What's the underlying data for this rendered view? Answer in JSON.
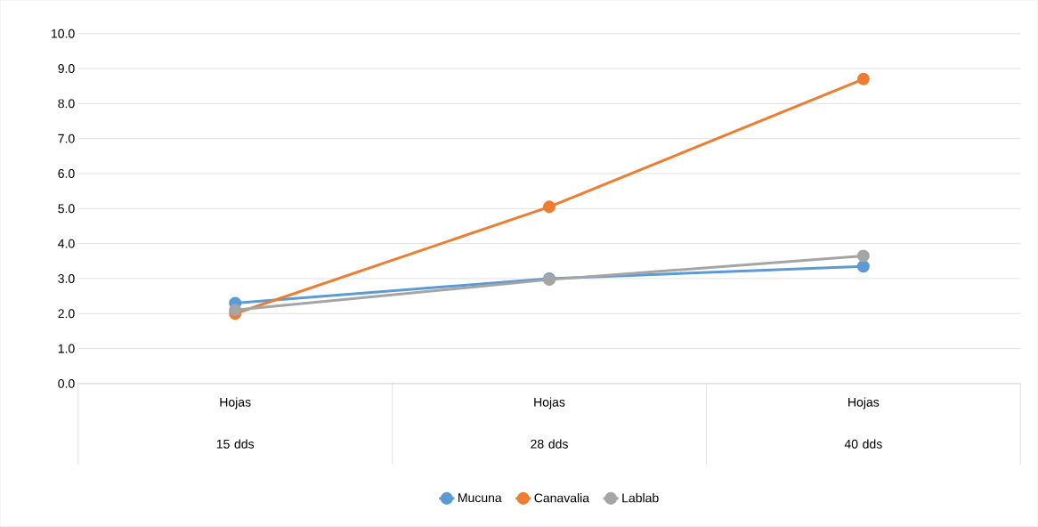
{
  "chart_data": {
    "type": "line",
    "categories": [
      "Hojas 15 dds",
      "Hojas 28 dds",
      "Hojas 40 dds"
    ],
    "series": [
      {
        "name": "Mucuna",
        "color": "#5b9bd5",
        "values": [
          2.3,
          3.0,
          3.35
        ]
      },
      {
        "name": "Canavalia",
        "color": "#ed7d31",
        "values": [
          2.0,
          5.05,
          8.7
        ]
      },
      {
        "name": "Lablab",
        "color": "#a5a5a5",
        "values": [
          2.1,
          2.97,
          3.65
        ]
      }
    ],
    "ylim": [
      0,
      10
    ],
    "yticks": [
      {
        "value": 0,
        "label": "0.0"
      },
      {
        "value": 1,
        "label": "1.0"
      },
      {
        "value": 2,
        "label": "2.0"
      },
      {
        "value": 3,
        "label": "3.0"
      },
      {
        "value": 4,
        "label": "4.0"
      },
      {
        "value": 5,
        "label": "5.0"
      },
      {
        "value": 6,
        "label": "6.0"
      },
      {
        "value": 7,
        "label": "7.0"
      },
      {
        "value": 8,
        "label": "8.0"
      },
      {
        "value": 9,
        "label": "9.0"
      },
      {
        "value": 10,
        "label": "10.0"
      }
    ],
    "grid": "y",
    "legend": "bottom",
    "marker": "circle",
    "line_style": "solid"
  }
}
